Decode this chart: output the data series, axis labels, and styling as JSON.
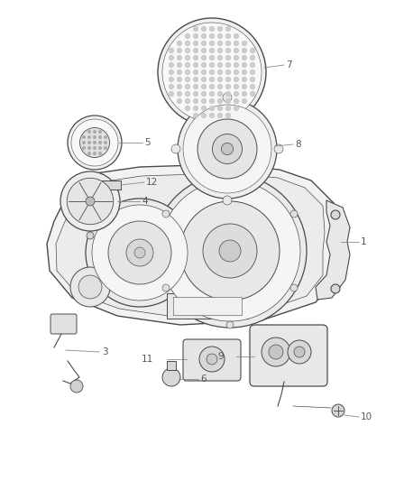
{
  "background_color": "#ffffff",
  "line_color": "#4a4a4a",
  "label_color": "#555555",
  "fig_width": 4.38,
  "fig_height": 5.33,
  "dpi": 100
}
